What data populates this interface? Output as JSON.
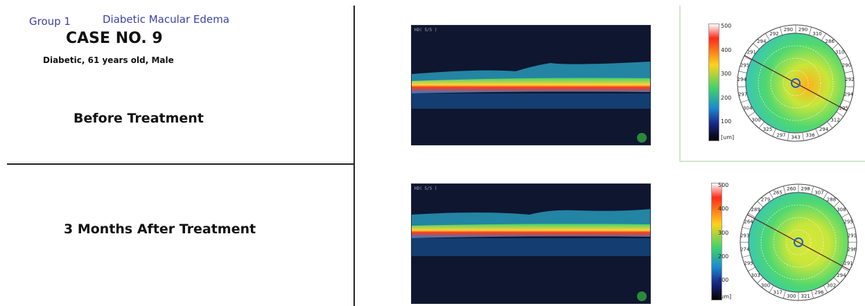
{
  "header": {
    "group": "Group 1",
    "condition": "Diabetic Macular Edema",
    "case": "CASE NO. 9",
    "patient": "Diabetic, 61 years old, Male"
  },
  "rows": [
    {
      "label": "Before Treatment",
      "oct_label": "HD( 5/5 )",
      "scale": [
        "500",
        "400",
        "300",
        "200",
        "100",
        "[um]"
      ],
      "map_values": [
        "290",
        "310",
        "286",
        "310",
        "290",
        "292",
        "294",
        "295",
        "312",
        "294",
        "336",
        "343",
        "297",
        "325",
        "300",
        "304",
        "297",
        "294",
        "295",
        "291",
        "294",
        "292",
        "290"
      ]
    },
    {
      "label": "3 Months After Treatment",
      "oct_label": "HD( 5/5 )",
      "scale": [
        "500",
        "400",
        "300",
        "200",
        "100",
        "[um]"
      ],
      "map_values": [
        "298",
        "307",
        "288",
        "308",
        "295",
        "291",
        "296",
        "291",
        "294",
        "302",
        "296",
        "321",
        "300",
        "317",
        "300",
        "303",
        "295",
        "274",
        "293",
        "264",
        "289",
        "279",
        "265",
        "260"
      ]
    }
  ],
  "colors": {
    "retina_dark": "#0e1630",
    "thick": "#ff3a1a",
    "normal": "#3fd36a",
    "thin": "#1a5fd0"
  }
}
